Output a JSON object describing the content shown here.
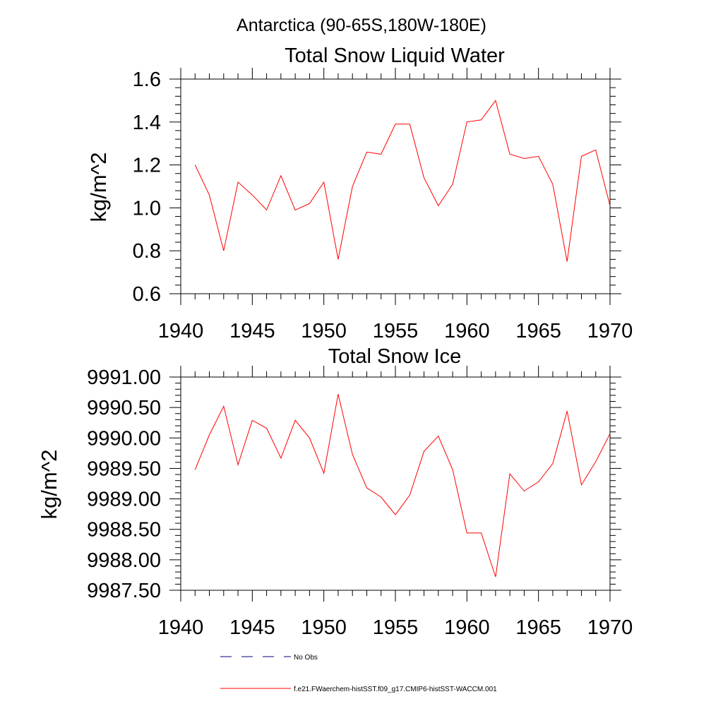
{
  "page": {
    "title": "Antarctica (90-65S,180W-180E)"
  },
  "legend": {
    "entries": [
      {
        "label": "No Obs",
        "color": "#000080",
        "style": "dashed"
      },
      {
        "label": "f.e21.FWaerchem-histSST.f09_g17.CMIP6-histSST-WACCM.001",
        "color": "#ff0000",
        "style": "solid"
      }
    ]
  },
  "chart_data": [
    {
      "type": "line",
      "title": "Total Snow Liquid Water",
      "ylabel": "kg/m^2",
      "xlabel": "",
      "xlim": [
        1940,
        1970
      ],
      "ylim": [
        0.6,
        1.6
      ],
      "xticks": [
        1940,
        1945,
        1950,
        1955,
        1960,
        1965,
        1970
      ],
      "xtick_labels": [
        "1940",
        "1945",
        "1950",
        "1955",
        "1960",
        "1965",
        "1970"
      ],
      "yticks": [
        0.6,
        0.8,
        1.0,
        1.2,
        1.4,
        1.6
      ],
      "ytick_labels": [
        "0.6",
        "0.8",
        "1.0",
        "1.2",
        "1.4",
        "1.6"
      ],
      "grid": false,
      "series": [
        {
          "color": "#ff0000",
          "x": [
            1941,
            1942,
            1943,
            1944,
            1945,
            1946,
            1947,
            1948,
            1949,
            1950,
            1951,
            1952,
            1953,
            1954,
            1955,
            1956,
            1957,
            1958,
            1959,
            1960,
            1961,
            1962,
            1963,
            1964,
            1965,
            1966,
            1967,
            1968,
            1969,
            1970
          ],
          "y": [
            1.2,
            1.06,
            0.8,
            1.12,
            1.06,
            0.99,
            1.15,
            0.99,
            1.02,
            1.12,
            0.76,
            1.1,
            1.26,
            1.25,
            1.39,
            1.39,
            1.14,
            1.01,
            1.11,
            1.4,
            1.41,
            1.5,
            1.25,
            1.23,
            1.24,
            1.11,
            0.75,
            1.24,
            1.27,
            1.01
          ]
        }
      ]
    },
    {
      "type": "line",
      "title": "Total Snow Ice",
      "ylabel": "kg/m^2",
      "xlabel": "",
      "xlim": [
        1940,
        1970
      ],
      "ylim": [
        9987.5,
        9991.0
      ],
      "xticks": [
        1940,
        1945,
        1950,
        1955,
        1960,
        1965,
        1970
      ],
      "xtick_labels": [
        "1940",
        "1945",
        "1950",
        "1955",
        "1960",
        "1965",
        "1970"
      ],
      "yticks": [
        9987.5,
        9988.0,
        9988.5,
        9989.0,
        9989.5,
        9990.0,
        9990.5,
        9991.0
      ],
      "ytick_labels": [
        "9987.50",
        "9988.00",
        "9988.50",
        "9989.00",
        "9989.50",
        "9990.00",
        "9990.50",
        "9991.00"
      ],
      "grid": false,
      "series": [
        {
          "color": "#ff0000",
          "x": [
            1941,
            1942,
            1943,
            1944,
            1945,
            1946,
            1947,
            1948,
            1949,
            1950,
            1951,
            1952,
            1953,
            1954,
            1955,
            1956,
            1957,
            1958,
            1959,
            1960,
            1961,
            1962,
            1963,
            1964,
            1965,
            1966,
            1967,
            1968,
            1969,
            1970
          ],
          "y": [
            9989.48,
            9990.05,
            9990.52,
            9989.56,
            9990.29,
            9990.16,
            9989.67,
            9990.29,
            9990.0,
            9989.42,
            9990.72,
            9989.73,
            9989.18,
            9989.03,
            9988.74,
            9989.06,
            9989.78,
            9990.03,
            9989.48,
            9988.44,
            9988.44,
            9987.72,
            9989.41,
            9989.13,
            9989.28,
            9989.58,
            9990.44,
            9989.23,
            9989.61,
            9990.07
          ]
        }
      ]
    }
  ]
}
